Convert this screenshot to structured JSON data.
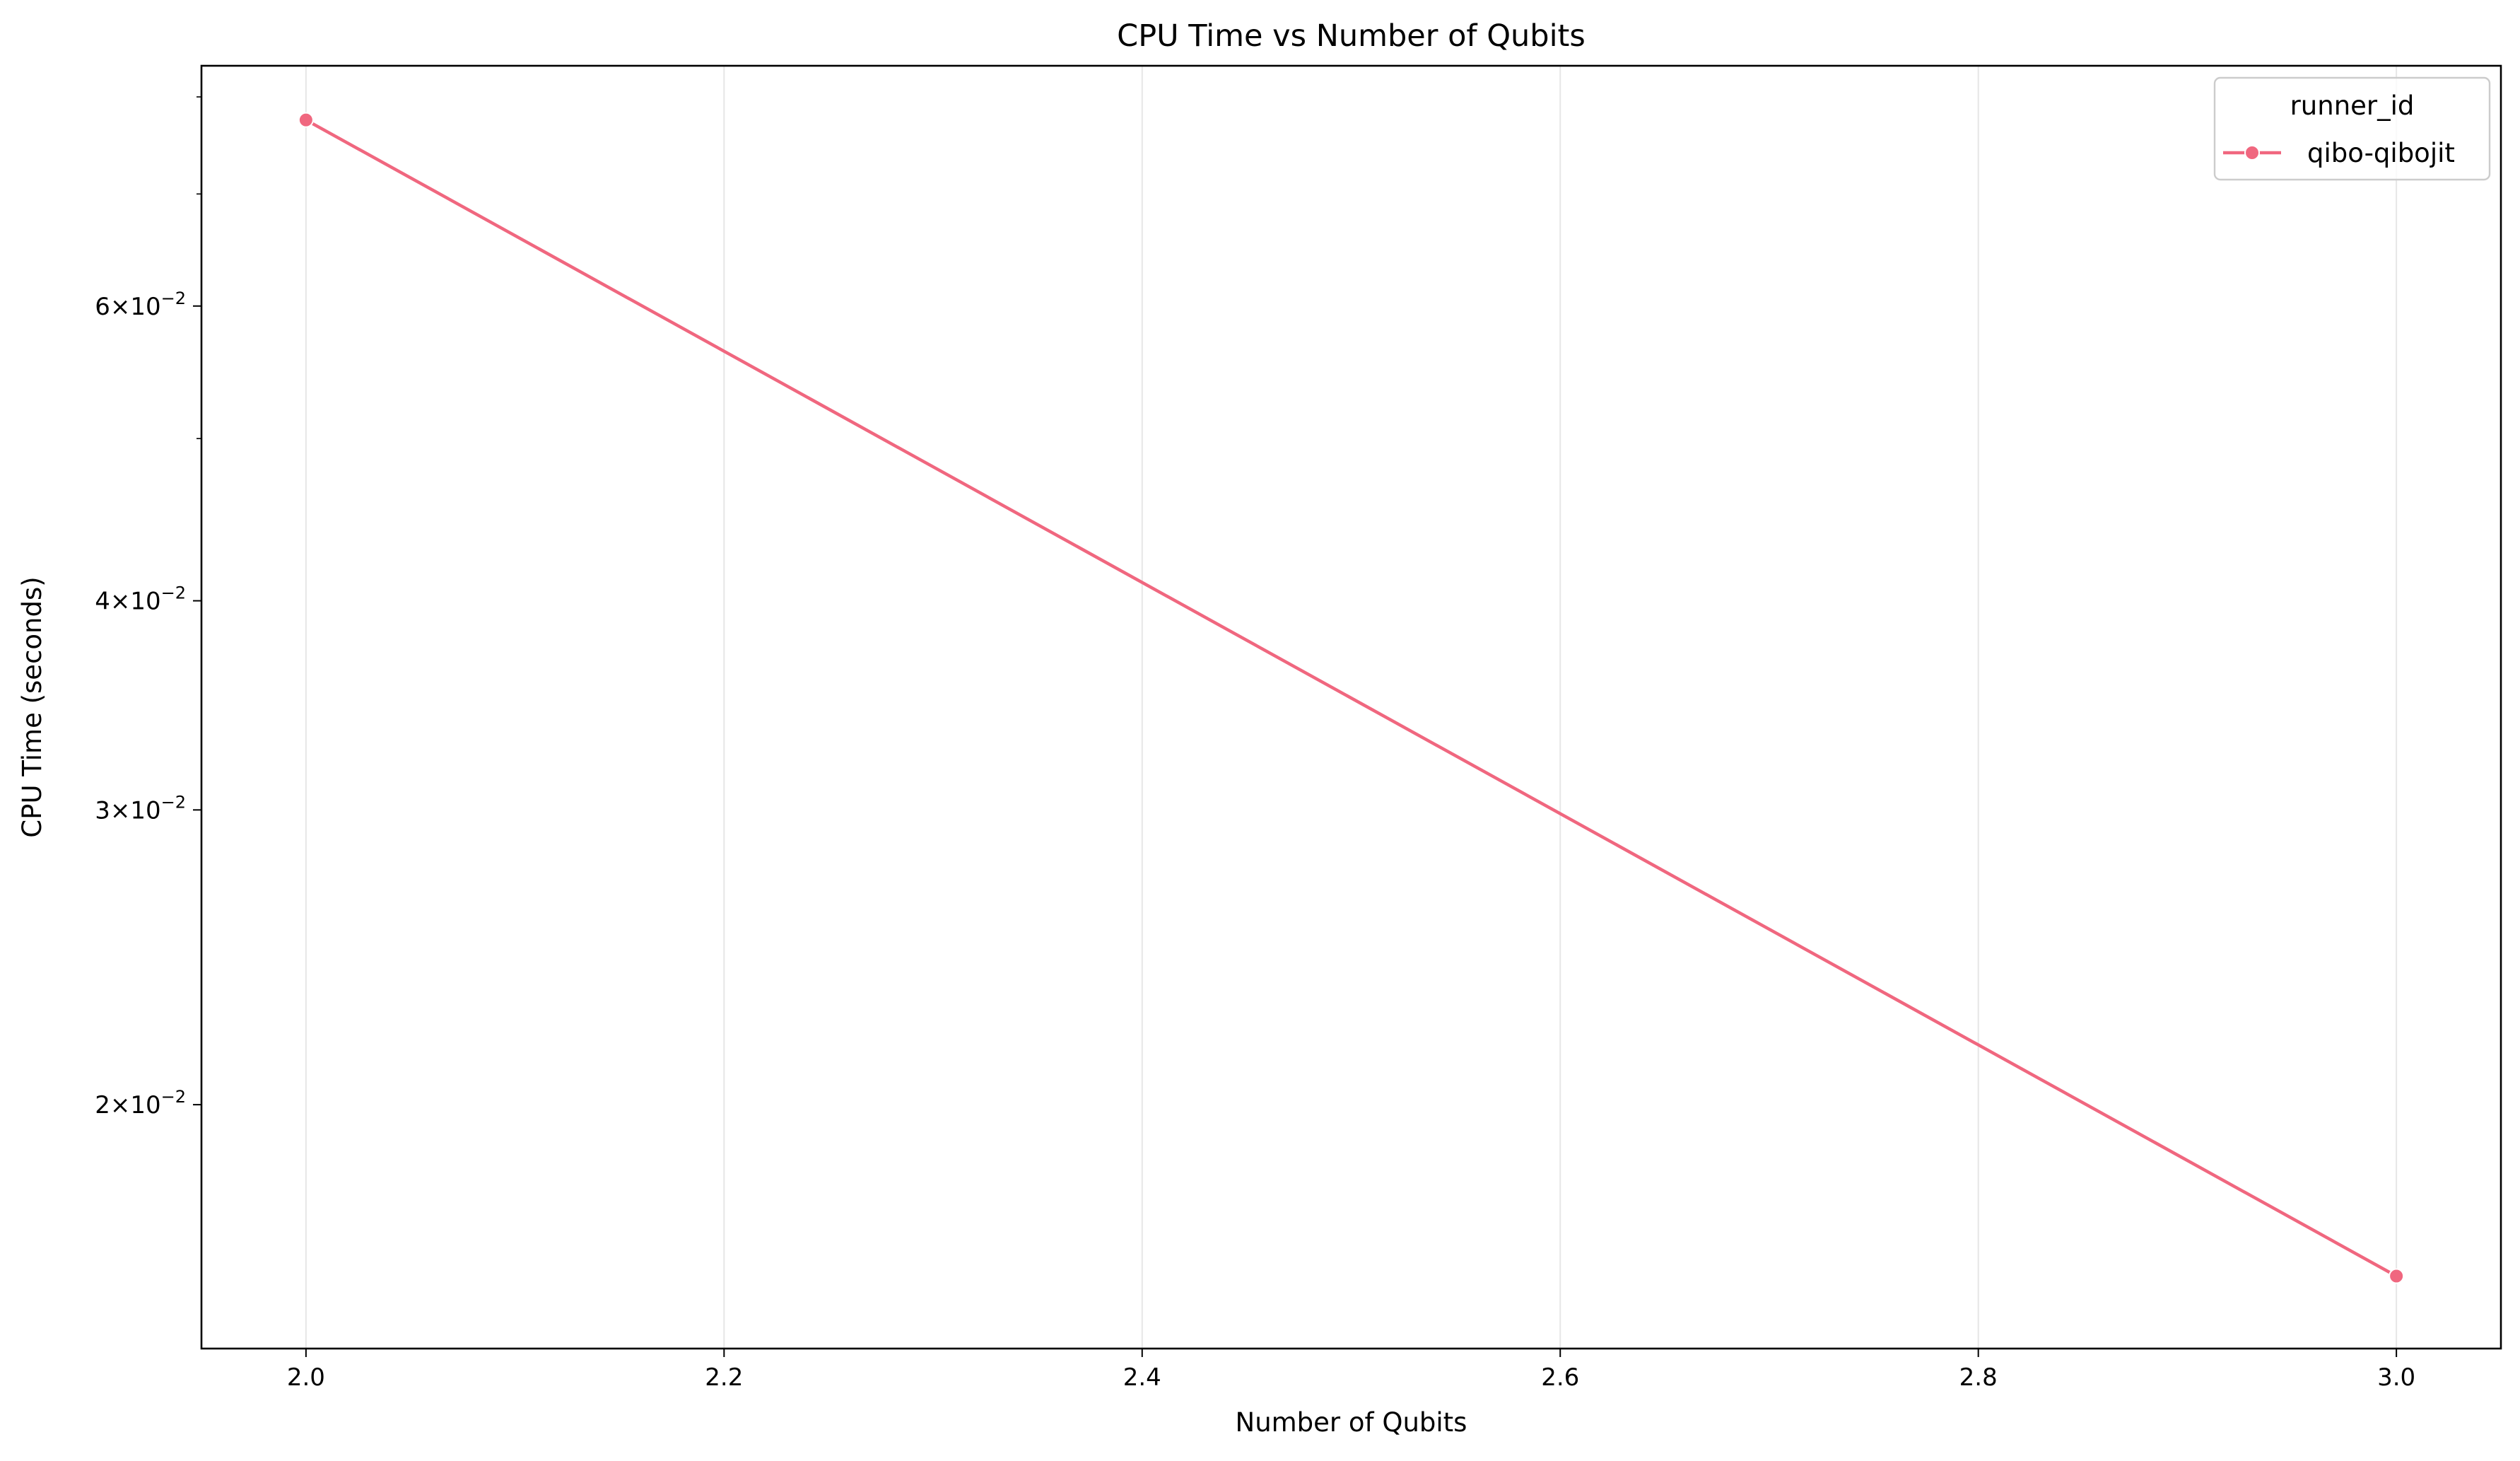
{
  "chart_data": {
    "type": "line",
    "title": "CPU Time vs Number of Qubits",
    "xlabel": "Number of Qubits",
    "ylabel": "CPU Time (seconds)",
    "xlim": [
      1.95,
      3.05
    ],
    "ylim": [
      0.0143,
      0.0835
    ],
    "yscale": "log",
    "x_ticks": [
      2.0,
      2.2,
      2.4,
      2.6,
      2.8,
      3.0
    ],
    "x_tick_labels": [
      "2.0",
      "2.2",
      "2.4",
      "2.6",
      "2.8",
      "3.0"
    ],
    "y_ticks": [
      {
        "value": 0.02,
        "mantissa": "2",
        "exponent": "−2"
      },
      {
        "value": 0.03,
        "mantissa": "3",
        "exponent": "−2"
      },
      {
        "value": 0.04,
        "mantissa": "4",
        "exponent": "−2"
      },
      {
        "value": 0.06,
        "mantissa": "6",
        "exponent": "−2"
      }
    ],
    "y_minor_ticks": [
      0.05,
      0.07,
      0.08
    ],
    "grid": "vertical",
    "legend": {
      "title": "runner_id",
      "placement": "top-right"
    },
    "series": [
      {
        "name": "qibo-qibojit",
        "color": "#f0677f",
        "x": [
          2,
          3
        ],
        "y": [
          0.0775,
          0.0158
        ]
      }
    ]
  }
}
